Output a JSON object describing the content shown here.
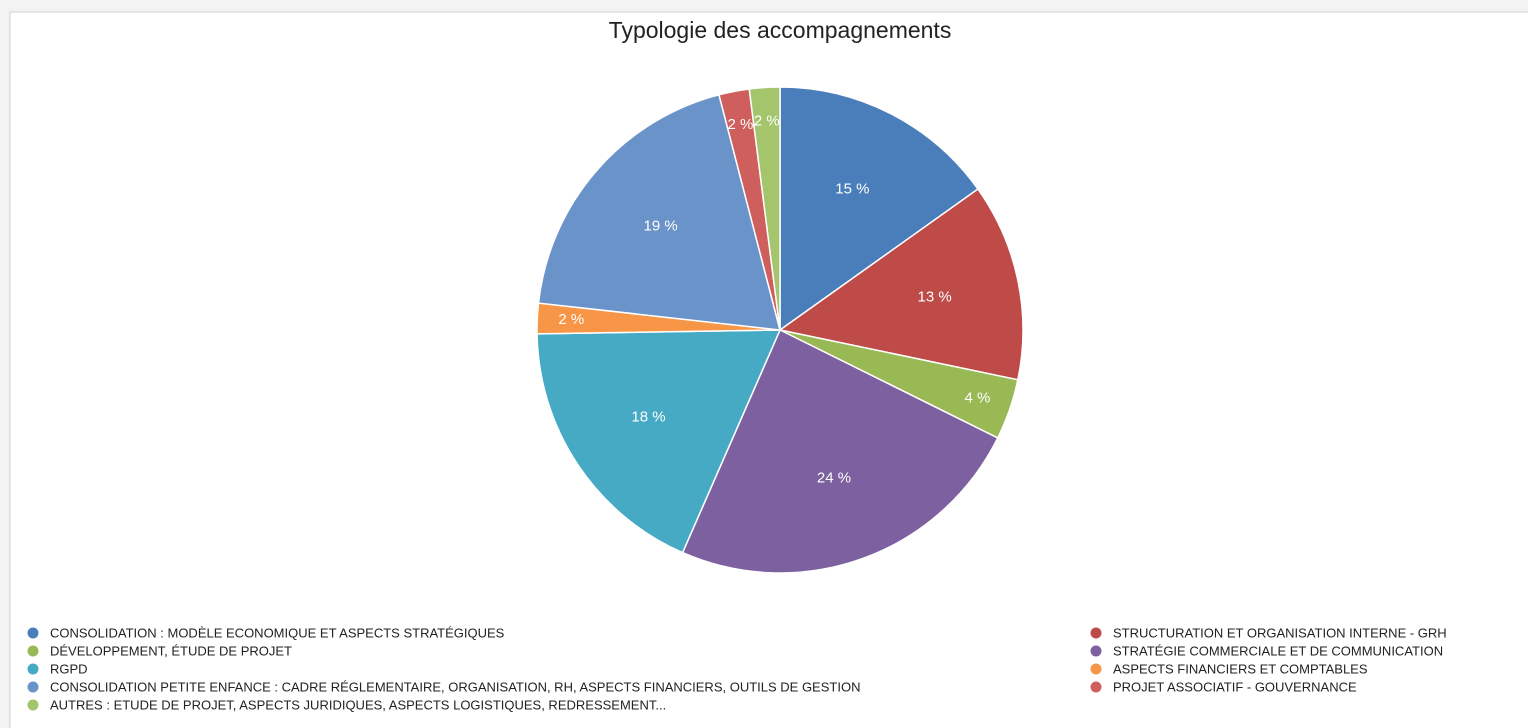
{
  "chart_data": {
    "type": "pie",
    "title": "Typologie des accompagnements",
    "categories": [
      "CONSOLIDATION : MODÈLE ECONOMIQUE ET ASPECTS STRATÉGIQUES",
      "STRUCTURATION ET ORGANISATION INTERNE - GRH",
      "DÉVELOPPEMENT, ÉTUDE DE PROJET",
      "STRATÉGIE COMMERCIALE ET DE COMMUNICATION",
      "RGPD",
      "ASPECTS FINANCIERS ET COMPTABLES",
      "CONSOLIDATION PETITE ENFANCE : CADRE RÉGLEMENTAIRE, ORGANISATION, RH, ASPECTS FINANCIERS, OUTILS DE GESTION",
      "PROJET ASSOCIATIF - GOUVERNANCE",
      "AUTRES : ETUDE DE PROJET, ASPECTS JURIDIQUES, ASPECTS LOGISTIQUES, REDRESSEMENT..."
    ],
    "values": [
      15,
      13,
      4,
      24,
      18,
      2,
      19,
      2,
      2
    ],
    "value_labels": [
      "15 %",
      "13 %",
      "4 %",
      "24 %",
      "18 %",
      "2 %",
      "19 %",
      "2 %",
      "2 %"
    ],
    "colors": [
      "#4a7ebb",
      "#be4b48",
      "#98b954",
      "#7d60a0",
      "#46aac5",
      "#f79646",
      "#6a93c9",
      "#cf5f5c",
      "#a4c56b"
    ],
    "legend": "bottom"
  }
}
